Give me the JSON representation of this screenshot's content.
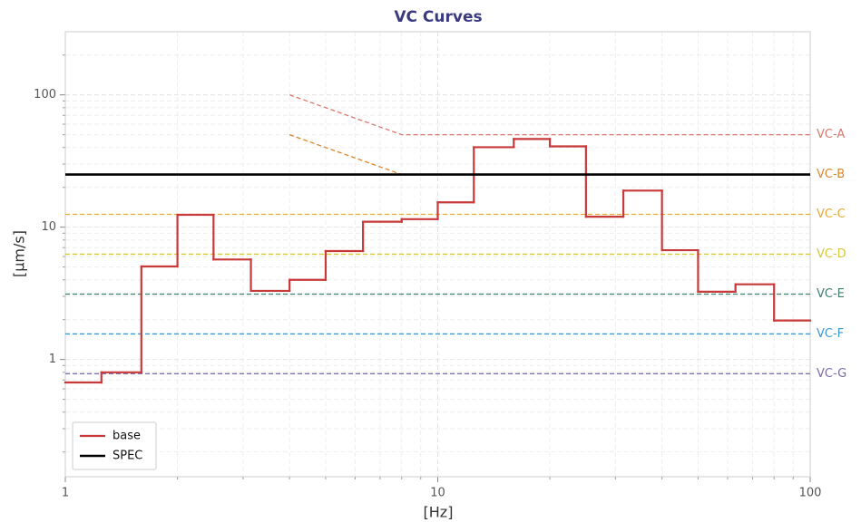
{
  "chart_data": {
    "type": "line",
    "title": "VC Curves",
    "x_label": "[Hz]",
    "y_label": "[µm/s]",
    "xscale": "log",
    "yscale": "log",
    "xlim": [
      1,
      100
    ],
    "ylim": [
      0.13,
      300
    ],
    "xticks": [
      1,
      10,
      100
    ],
    "yticks": [
      1,
      10,
      100
    ],
    "grid": true,
    "minor_grid": true,
    "legend_position": "lower left",
    "series": [
      {
        "name": "VC-A",
        "color": "#d9776e",
        "dash": true,
        "legend": false,
        "end_label": true,
        "x": [
          4,
          8,
          100
        ],
        "values": [
          100,
          50,
          50
        ]
      },
      {
        "name": "VC-B",
        "color": "#d9862c",
        "dash": true,
        "legend": false,
        "end_label": true,
        "x": [
          4,
          8,
          100
        ],
        "values": [
          50,
          25,
          25
        ]
      },
      {
        "name": "VC-C",
        "color": "#e6a93a",
        "dash": true,
        "legend": false,
        "end_label": true,
        "x": [
          1,
          100
        ],
        "values": [
          12.5,
          12.5
        ]
      },
      {
        "name": "VC-D",
        "color": "#d6c83a",
        "dash": true,
        "legend": false,
        "end_label": true,
        "x": [
          1,
          100
        ],
        "values": [
          6.25,
          6.25
        ]
      },
      {
        "name": "VC-E",
        "color": "#3f7d6e",
        "dash": true,
        "legend": false,
        "end_label": true,
        "x": [
          1,
          100
        ],
        "values": [
          3.12,
          3.12
        ]
      },
      {
        "name": "VC-F",
        "color": "#3b97cf",
        "dash": true,
        "legend": false,
        "end_label": true,
        "x": [
          1,
          100
        ],
        "values": [
          1.56,
          1.56
        ]
      },
      {
        "name": "VC-G",
        "color": "#7a6aa6",
        "dash": true,
        "legend": false,
        "end_label": true,
        "x": [
          1,
          100
        ],
        "values": [
          0.78,
          0.78
        ]
      },
      {
        "name": "base",
        "color": "#c8393a",
        "step": "post",
        "legend": true,
        "end_label": false,
        "x": [
          1,
          1.25,
          1.6,
          2,
          2.5,
          3.15,
          4,
          5,
          6.3,
          8,
          10,
          12.5,
          16,
          20,
          25,
          31.5,
          40,
          50,
          63,
          80
        ],
        "values": [
          0.67,
          0.8,
          5.05,
          12.4,
          5.7,
          3.3,
          4.0,
          6.6,
          11.0,
          11.5,
          15.4,
          40.2,
          46.4,
          40.8,
          12.0,
          18.9,
          6.7,
          3.25,
          3.7,
          1.97
        ]
      },
      {
        "name": "SPEC",
        "color": "#000000",
        "legend": true,
        "end_label": false,
        "x": [
          1,
          100
        ],
        "values": [
          25,
          25
        ]
      }
    ]
  }
}
